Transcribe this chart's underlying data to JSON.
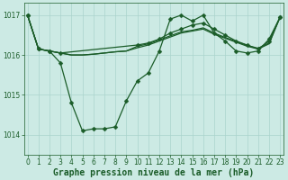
{
  "title": "Graphe pression niveau de la mer (hPa)",
  "background_color": "#cceae4",
  "grid_color": "#aad4cc",
  "line_color": "#1a5c28",
  "xlim": [
    -0.3,
    23.3
  ],
  "ylim": [
    1013.5,
    1017.3
  ],
  "yticks": [
    1014,
    1015,
    1016,
    1017
  ],
  "xticks": [
    0,
    1,
    2,
    3,
    4,
    5,
    6,
    7,
    8,
    9,
    10,
    11,
    12,
    13,
    14,
    15,
    16,
    17,
    18,
    19,
    20,
    21,
    22,
    23
  ],
  "series_with_markers": [
    {
      "x": [
        0,
        1,
        2,
        3,
        4,
        5,
        6,
        7,
        8,
        9,
        10,
        11,
        12,
        13,
        14,
        15,
        16,
        17,
        18,
        19,
        20,
        21,
        22,
        23
      ],
      "y": [
        1017.0,
        1016.15,
        1016.1,
        1015.8,
        1014.8,
        1014.1,
        1014.15,
        1014.15,
        1014.2,
        1014.85,
        1015.35,
        1015.55,
        1016.1,
        1016.9,
        1017.0,
        1016.85,
        1017.0,
        1016.55,
        1016.35,
        1016.1,
        1016.05,
        1016.1,
        1016.4,
        1016.95
      ]
    },
    {
      "x": [
        0,
        1,
        2,
        3,
        10,
        11,
        12,
        13,
        14,
        15,
        16,
        17,
        18,
        19,
        20,
        21,
        22,
        23
      ],
      "y": [
        1017.0,
        1016.15,
        1016.1,
        1016.05,
        1016.25,
        1016.3,
        1016.4,
        1016.55,
        1016.65,
        1016.75,
        1016.8,
        1016.65,
        1016.5,
        1016.35,
        1016.25,
        1016.15,
        1016.35,
        1016.95
      ]
    }
  ],
  "series_no_markers": [
    {
      "x": [
        0,
        1,
        2,
        3,
        4,
        5,
        6,
        7,
        8,
        9,
        10,
        11,
        12,
        13,
        14,
        15,
        16,
        17,
        18,
        19,
        20,
        21,
        22,
        23
      ],
      "y": [
        1017.0,
        1016.15,
        1016.1,
        1016.05,
        1016.0,
        1016.0,
        1016.02,
        1016.05,
        1016.08,
        1016.1,
        1016.18,
        1016.25,
        1016.35,
        1016.45,
        1016.55,
        1016.6,
        1016.65,
        1016.52,
        1016.42,
        1016.32,
        1016.22,
        1016.15,
        1016.28,
        1016.95
      ]
    },
    {
      "x": [
        0,
        1,
        2,
        3,
        4,
        5,
        6,
        7,
        8,
        9,
        10,
        11,
        12,
        13,
        14,
        15,
        16,
        17,
        18,
        19,
        20,
        21,
        22,
        23
      ],
      "y": [
        1017.0,
        1016.15,
        1016.1,
        1016.05,
        1016.0,
        1016.0,
        1016.02,
        1016.05,
        1016.08,
        1016.1,
        1016.22,
        1016.28,
        1016.38,
        1016.48,
        1016.58,
        1016.62,
        1016.68,
        1016.55,
        1016.44,
        1016.34,
        1016.24,
        1016.17,
        1016.3,
        1016.95
      ]
    }
  ],
  "marker": "D",
  "marker_size": 2.5,
  "linewidth": 0.9,
  "title_fontsize": 7,
  "tick_fontsize": 5.5
}
